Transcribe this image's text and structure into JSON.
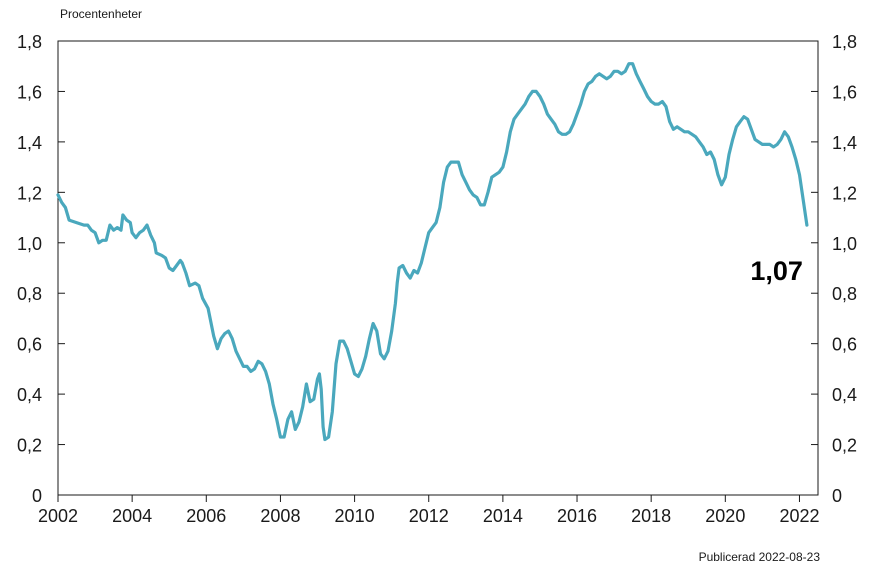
{
  "header": {
    "unit_label": "Procentenheter"
  },
  "footer": {
    "published": "Publicerad 2022-08-23"
  },
  "colors": {
    "line": "#4aa8bd",
    "axis": "#1a1a1a",
    "grid": "#e5e5e5"
  },
  "chart_data": {
    "type": "line",
    "title": "",
    "xlabel": "",
    "ylabel": "Procentenheter",
    "xlim": [
      2002,
      2022.5
    ],
    "ylim": [
      0,
      1.8
    ],
    "x_ticks": [
      "2002",
      "2004",
      "2006",
      "2008",
      "2010",
      "2012",
      "2014",
      "2016",
      "2018",
      "2020",
      "2022"
    ],
    "y_ticks": [
      "0",
      "0,2",
      "0,4",
      "0,6",
      "0,8",
      "1,0",
      "1,2",
      "1,4",
      "1,6",
      "1,8"
    ],
    "grid": false,
    "end_label": "1,07",
    "series": [
      {
        "points": [
          [
            2002.0,
            1.19
          ],
          [
            2002.1,
            1.16
          ],
          [
            2002.2,
            1.14
          ],
          [
            2002.3,
            1.09
          ],
          [
            2002.5,
            1.08
          ],
          [
            2002.7,
            1.07
          ],
          [
            2002.8,
            1.07
          ],
          [
            2002.9,
            1.05
          ],
          [
            2003.0,
            1.04
          ],
          [
            2003.1,
            1.0
          ],
          [
            2003.2,
            1.01
          ],
          [
            2003.3,
            1.01
          ],
          [
            2003.4,
            1.07
          ],
          [
            2003.5,
            1.05
          ],
          [
            2003.6,
            1.06
          ],
          [
            2003.7,
            1.05
          ],
          [
            2003.75,
            1.11
          ],
          [
            2003.85,
            1.09
          ],
          [
            2003.95,
            1.08
          ],
          [
            2004.0,
            1.04
          ],
          [
            2004.1,
            1.02
          ],
          [
            2004.2,
            1.04
          ],
          [
            2004.3,
            1.05
          ],
          [
            2004.4,
            1.07
          ],
          [
            2004.5,
            1.03
          ],
          [
            2004.6,
            1.0
          ],
          [
            2004.65,
            0.96
          ],
          [
            2004.8,
            0.95
          ],
          [
            2004.9,
            0.94
          ],
          [
            2005.0,
            0.9
          ],
          [
            2005.1,
            0.89
          ],
          [
            2005.2,
            0.91
          ],
          [
            2005.3,
            0.93
          ],
          [
            2005.35,
            0.92
          ],
          [
            2005.45,
            0.88
          ],
          [
            2005.55,
            0.83
          ],
          [
            2005.7,
            0.84
          ],
          [
            2005.8,
            0.83
          ],
          [
            2005.9,
            0.78
          ],
          [
            2006.05,
            0.74
          ],
          [
            2006.2,
            0.63
          ],
          [
            2006.3,
            0.58
          ],
          [
            2006.4,
            0.62
          ],
          [
            2006.5,
            0.64
          ],
          [
            2006.6,
            0.65
          ],
          [
            2006.7,
            0.62
          ],
          [
            2006.8,
            0.57
          ],
          [
            2006.9,
            0.54
          ],
          [
            2007.0,
            0.51
          ],
          [
            2007.1,
            0.51
          ],
          [
            2007.2,
            0.49
          ],
          [
            2007.3,
            0.5
          ],
          [
            2007.4,
            0.53
          ],
          [
            2007.5,
            0.52
          ],
          [
            2007.6,
            0.49
          ],
          [
            2007.7,
            0.44
          ],
          [
            2007.8,
            0.36
          ],
          [
            2007.9,
            0.3
          ],
          [
            2008.0,
            0.23
          ],
          [
            2008.1,
            0.23
          ],
          [
            2008.2,
            0.3
          ],
          [
            2008.3,
            0.33
          ],
          [
            2008.4,
            0.26
          ],
          [
            2008.5,
            0.29
          ],
          [
            2008.6,
            0.35
          ],
          [
            2008.7,
            0.44
          ],
          [
            2008.8,
            0.37
          ],
          [
            2008.9,
            0.38
          ],
          [
            2009.0,
            0.46
          ],
          [
            2009.05,
            0.48
          ],
          [
            2009.1,
            0.42
          ],
          [
            2009.15,
            0.27
          ],
          [
            2009.2,
            0.22
          ],
          [
            2009.3,
            0.23
          ],
          [
            2009.4,
            0.33
          ],
          [
            2009.5,
            0.52
          ],
          [
            2009.6,
            0.61
          ],
          [
            2009.7,
            0.61
          ],
          [
            2009.8,
            0.58
          ],
          [
            2009.9,
            0.53
          ],
          [
            2010.0,
            0.48
          ],
          [
            2010.1,
            0.47
          ],
          [
            2010.2,
            0.5
          ],
          [
            2010.3,
            0.55
          ],
          [
            2010.4,
            0.62
          ],
          [
            2010.5,
            0.68
          ],
          [
            2010.6,
            0.65
          ],
          [
            2010.7,
            0.56
          ],
          [
            2010.8,
            0.54
          ],
          [
            2010.9,
            0.57
          ],
          [
            2011.0,
            0.65
          ],
          [
            2011.1,
            0.76
          ],
          [
            2011.15,
            0.84
          ],
          [
            2011.2,
            0.9
          ],
          [
            2011.3,
            0.91
          ],
          [
            2011.4,
            0.88
          ],
          [
            2011.5,
            0.86
          ],
          [
            2011.6,
            0.89
          ],
          [
            2011.7,
            0.88
          ],
          [
            2011.8,
            0.92
          ],
          [
            2011.9,
            0.98
          ],
          [
            2012.0,
            1.04
          ],
          [
            2012.1,
            1.06
          ],
          [
            2012.2,
            1.08
          ],
          [
            2012.3,
            1.14
          ],
          [
            2012.4,
            1.24
          ],
          [
            2012.5,
            1.3
          ],
          [
            2012.6,
            1.32
          ],
          [
            2012.7,
            1.32
          ],
          [
            2012.8,
            1.32
          ],
          [
            2012.9,
            1.27
          ],
          [
            2013.0,
            1.24
          ],
          [
            2013.1,
            1.21
          ],
          [
            2013.2,
            1.19
          ],
          [
            2013.3,
            1.18
          ],
          [
            2013.4,
            1.15
          ],
          [
            2013.5,
            1.15
          ],
          [
            2013.6,
            1.2
          ],
          [
            2013.7,
            1.26
          ],
          [
            2013.8,
            1.27
          ],
          [
            2013.9,
            1.28
          ],
          [
            2014.0,
            1.3
          ],
          [
            2014.1,
            1.36
          ],
          [
            2014.2,
            1.44
          ],
          [
            2014.3,
            1.49
          ],
          [
            2014.4,
            1.51
          ],
          [
            2014.5,
            1.53
          ],
          [
            2014.6,
            1.55
          ],
          [
            2014.7,
            1.58
          ],
          [
            2014.8,
            1.6
          ],
          [
            2014.9,
            1.6
          ],
          [
            2015.0,
            1.58
          ],
          [
            2015.1,
            1.55
          ],
          [
            2015.2,
            1.51
          ],
          [
            2015.3,
            1.49
          ],
          [
            2015.4,
            1.47
          ],
          [
            2015.5,
            1.44
          ],
          [
            2015.6,
            1.43
          ],
          [
            2015.7,
            1.43
          ],
          [
            2015.8,
            1.44
          ],
          [
            2015.9,
            1.47
          ],
          [
            2016.0,
            1.51
          ],
          [
            2016.1,
            1.55
          ],
          [
            2016.2,
            1.6
          ],
          [
            2016.3,
            1.63
          ],
          [
            2016.4,
            1.64
          ],
          [
            2016.5,
            1.66
          ],
          [
            2016.6,
            1.67
          ],
          [
            2016.7,
            1.66
          ],
          [
            2016.8,
            1.65
          ],
          [
            2016.9,
            1.66
          ],
          [
            2017.0,
            1.68
          ],
          [
            2017.1,
            1.68
          ],
          [
            2017.2,
            1.67
          ],
          [
            2017.3,
            1.68
          ],
          [
            2017.4,
            1.71
          ],
          [
            2017.5,
            1.71
          ],
          [
            2017.6,
            1.67
          ],
          [
            2017.7,
            1.64
          ],
          [
            2017.8,
            1.61
          ],
          [
            2017.9,
            1.58
          ],
          [
            2018.0,
            1.56
          ],
          [
            2018.1,
            1.55
          ],
          [
            2018.2,
            1.55
          ],
          [
            2018.3,
            1.56
          ],
          [
            2018.4,
            1.54
          ],
          [
            2018.5,
            1.48
          ],
          [
            2018.6,
            1.45
          ],
          [
            2018.7,
            1.46
          ],
          [
            2018.8,
            1.45
          ],
          [
            2018.9,
            1.44
          ],
          [
            2019.0,
            1.44
          ],
          [
            2019.1,
            1.43
          ],
          [
            2019.2,
            1.42
          ],
          [
            2019.3,
            1.4
          ],
          [
            2019.4,
            1.38
          ],
          [
            2019.5,
            1.35
          ],
          [
            2019.6,
            1.36
          ],
          [
            2019.7,
            1.33
          ],
          [
            2019.8,
            1.27
          ],
          [
            2019.9,
            1.23
          ],
          [
            2020.0,
            1.26
          ],
          [
            2020.1,
            1.35
          ],
          [
            2020.2,
            1.41
          ],
          [
            2020.3,
            1.46
          ],
          [
            2020.4,
            1.48
          ],
          [
            2020.5,
            1.5
          ],
          [
            2020.6,
            1.49
          ],
          [
            2020.7,
            1.45
          ],
          [
            2020.8,
            1.41
          ],
          [
            2020.9,
            1.4
          ],
          [
            2021.0,
            1.39
          ],
          [
            2021.1,
            1.39
          ],
          [
            2021.2,
            1.39
          ],
          [
            2021.3,
            1.38
          ],
          [
            2021.4,
            1.39
          ],
          [
            2021.5,
            1.41
          ],
          [
            2021.6,
            1.44
          ],
          [
            2021.7,
            1.42
          ],
          [
            2021.8,
            1.38
          ],
          [
            2021.9,
            1.33
          ],
          [
            2022.0,
            1.27
          ],
          [
            2022.1,
            1.17
          ],
          [
            2022.2,
            1.07
          ]
        ]
      }
    ]
  }
}
